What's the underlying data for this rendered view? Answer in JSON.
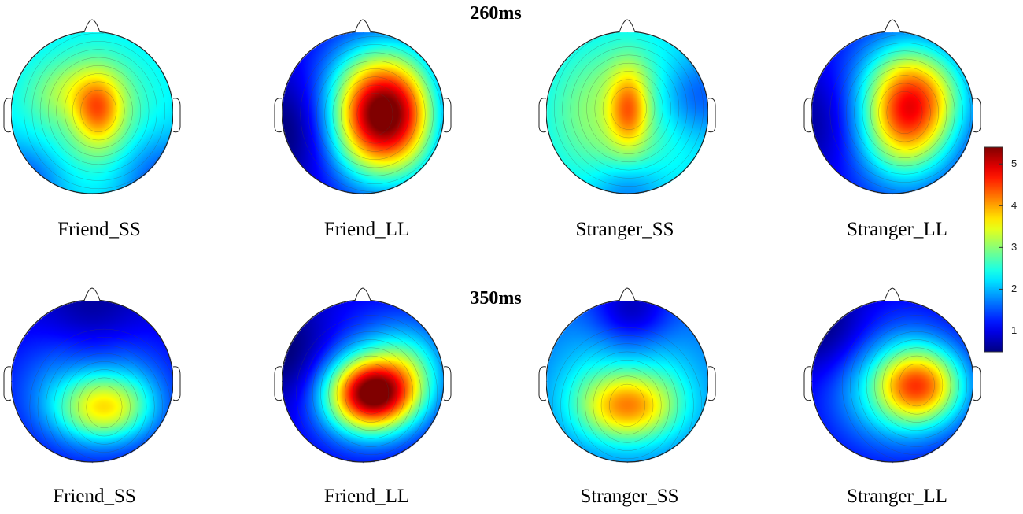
{
  "chart_data": {
    "type": "heatmap",
    "description_kind": "scalp topographic maps",
    "rows": [
      {
        "title": "260ms",
        "maps": [
          {
            "label": "Friend_SS",
            "base": 2.6,
            "blobs": [
              {
                "x": 0.08,
                "y": -0.02,
                "sx": 0.22,
                "sy": 0.32,
                "amp": 1.6
              },
              {
                "x": -0.25,
                "y": -0.25,
                "sx": 0.35,
                "sy": 0.25,
                "amp": 0.6
              }
            ],
            "falloff": [
              {
                "x": -0.85,
                "y": 0.85,
                "r": 0.35,
                "amp": -0.8
              },
              {
                "x": 0.85,
                "y": 0.8,
                "r": 0.4,
                "amp": -0.8
              }
            ]
          },
          {
            "label": "Friend_LL",
            "base": 1.5,
            "blobs": [
              {
                "x": 0.15,
                "y": 0.02,
                "sx": 0.38,
                "sy": 0.5,
                "amp": 3.8
              },
              {
                "x": 0.6,
                "y": 0.0,
                "sx": 0.3,
                "sy": 0.6,
                "amp": 1.2
              }
            ],
            "falloff": [
              {
                "x": -0.85,
                "y": 0.2,
                "r": 0.5,
                "amp": -0.8
              }
            ]
          },
          {
            "label": "Stranger_SS",
            "base": 2.6,
            "blobs": [
              {
                "x": 0.02,
                "y": -0.05,
                "sx": 0.18,
                "sy": 0.36,
                "amp": 1.6
              },
              {
                "x": -0.4,
                "y": 0.0,
                "sx": 0.4,
                "sy": 0.5,
                "amp": 0.4
              }
            ],
            "falloff": [
              {
                "x": 0.0,
                "y": 0.95,
                "r": 0.3,
                "amp": -0.6
              },
              {
                "x": 0.85,
                "y": -0.2,
                "r": 0.35,
                "amp": -0.8
              }
            ]
          },
          {
            "label": "Stranger_LL",
            "base": 1.6,
            "blobs": [
              {
                "x": 0.15,
                "y": 0.0,
                "sx": 0.38,
                "sy": 0.5,
                "amp": 2.9
              },
              {
                "x": 0.5,
                "y": -0.3,
                "sx": 0.4,
                "sy": 0.4,
                "amp": 0.8
              }
            ],
            "falloff": [
              {
                "x": -0.85,
                "y": 0.1,
                "r": 0.5,
                "amp": -0.7
              }
            ]
          }
        ]
      },
      {
        "title": "350ms",
        "maps": [
          {
            "label": "Friend_SS",
            "base": 1.4,
            "blobs": [
              {
                "x": 0.15,
                "y": 0.32,
                "sx": 0.4,
                "sy": 0.28,
                "amp": 1.9
              },
              {
                "x": 0.0,
                "y": 0.1,
                "sx": 0.7,
                "sy": 0.5,
                "amp": 0.5
              }
            ],
            "falloff": [
              {
                "x": 0.0,
                "y": -0.75,
                "r": 0.45,
                "amp": -0.6
              }
            ]
          },
          {
            "label": "Friend_LL",
            "base": 1.4,
            "blobs": [
              {
                "x": 0.1,
                "y": 0.15,
                "sx": 0.38,
                "sy": 0.32,
                "amp": 4.2
              },
              {
                "x": 0.6,
                "y": -0.2,
                "sx": 0.35,
                "sy": 0.4,
                "amp": 1.0
              }
            ],
            "falloff": [
              {
                "x": -0.85,
                "y": -0.3,
                "r": 0.45,
                "amp": -0.7
              }
            ]
          },
          {
            "label": "Stranger_SS",
            "base": 2.0,
            "blobs": [
              {
                "x": 0.0,
                "y": 0.3,
                "sx": 0.4,
                "sy": 0.28,
                "amp": 1.9
              },
              {
                "x": 0.0,
                "y": 0.15,
                "sx": 0.8,
                "sy": 0.5,
                "amp": 0.3
              }
            ],
            "falloff": [
              {
                "x": 0.05,
                "y": -0.85,
                "r": 0.35,
                "amp": -1.0
              }
            ]
          },
          {
            "label": "Stranger_LL",
            "base": 1.4,
            "blobs": [
              {
                "x": 0.3,
                "y": 0.05,
                "sx": 0.38,
                "sy": 0.32,
                "amp": 2.6
              },
              {
                "x": 0.1,
                "y": 0.15,
                "sx": 0.6,
                "sy": 0.5,
                "amp": 0.6
              }
            ],
            "falloff": [
              {
                "x": -0.8,
                "y": -0.6,
                "r": 0.4,
                "amp": -0.6
              }
            ]
          }
        ]
      }
    ],
    "colorbar": {
      "min": 0.5,
      "max": 5.4,
      "ticks": [
        1,
        2,
        3,
        4,
        5
      ],
      "colormap": "jet"
    }
  }
}
